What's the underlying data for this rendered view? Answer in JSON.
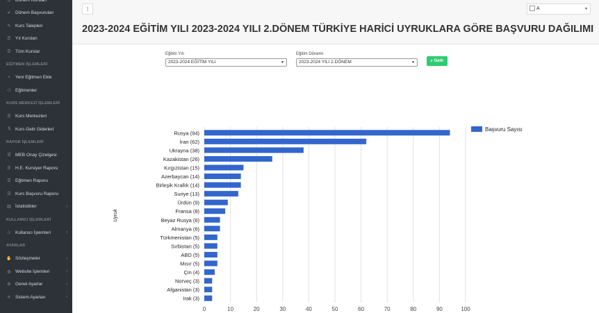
{
  "sidebar": {
    "items": [
      {
        "type": "item",
        "icon": "list-icon",
        "glyph": "☰",
        "label": "Dönem Kursları",
        "chevron": false
      },
      {
        "type": "item",
        "icon": "check-icon",
        "glyph": "✔",
        "label": "Dönem Başvuruları",
        "chevron": false
      },
      {
        "type": "item",
        "icon": "pencil-icon",
        "glyph": "✎",
        "label": "Kurs Talepleri",
        "chevron": false
      },
      {
        "type": "item",
        "icon": "list-icon",
        "glyph": "☰",
        "label": "Yıl Kursları",
        "chevron": false
      },
      {
        "type": "item",
        "icon": "list-icon",
        "glyph": "☰",
        "label": "Tüm Kurslar",
        "chevron": false
      },
      {
        "type": "header",
        "label": "EĞİTMEN İŞLEMLERİ"
      },
      {
        "type": "item",
        "icon": "user-plus-icon",
        "glyph": "+",
        "label": "Yeni Eğitmen Ekle",
        "chevron": false
      },
      {
        "type": "item",
        "icon": "users-icon",
        "glyph": "⚇",
        "label": "Eğitmenler",
        "chevron": false
      },
      {
        "type": "header",
        "label": "KURS MERKEZİ İŞLEMLERİ"
      },
      {
        "type": "item",
        "icon": "list-icon",
        "glyph": "☰",
        "label": "Kurs Merkezleri",
        "chevron": false
      },
      {
        "type": "item",
        "icon": "dollar-icon",
        "glyph": "$",
        "label": "Kurs Gelir Giderleri",
        "chevron": false
      },
      {
        "type": "header",
        "label": "RAPOR İŞLEMLERİ"
      },
      {
        "type": "item",
        "icon": "list-icon",
        "glyph": "☰",
        "label": "MEB Onay Çizelgesi",
        "chevron": false
      },
      {
        "type": "item",
        "icon": "list-icon",
        "glyph": "☰",
        "label": "H.E. Kursiyer Raporu",
        "chevron": false
      },
      {
        "type": "item",
        "icon": "list-icon",
        "glyph": "☰",
        "label": "Eğitmen Raporu",
        "chevron": false
      },
      {
        "type": "item",
        "icon": "list-icon",
        "glyph": "☰",
        "label": "Kurs Başvuru Raporu",
        "chevron": false
      },
      {
        "type": "item",
        "icon": "bar-chart-icon",
        "glyph": "▥",
        "label": "İstatistikler",
        "chevron": true
      },
      {
        "type": "header",
        "label": "KULLANICI İŞLEMLERİ"
      },
      {
        "type": "item",
        "icon": "users-icon",
        "glyph": "⚇",
        "label": "Kullanıcı İşlemleri",
        "chevron": true
      },
      {
        "type": "header",
        "label": "AYARLAR"
      },
      {
        "type": "item",
        "icon": "handshake-icon",
        "glyph": "✋",
        "label": "Sözleşmeler",
        "chevron": true
      },
      {
        "type": "item",
        "icon": "globe-icon",
        "glyph": "◍",
        "label": "Website İşlemleri",
        "chevron": true
      },
      {
        "type": "item",
        "icon": "gear-icon",
        "glyph": "⚙",
        "label": "Genel Ayarlar",
        "chevron": true
      },
      {
        "type": "item",
        "icon": "sliders-icon",
        "glyph": "⚟",
        "label": "Sistem Ayarları",
        "chevron": true
      }
    ]
  },
  "topbar": {
    "menu_glyph": "⁝",
    "user_alt": "A"
  },
  "page": {
    "title": "2023-2024 EĞİTİM YILI 2023-2024 YILI 2.DÖNEM TÜRKİYE HARİCİ UYRUKLARA GÖRE BAŞVURU DAĞILIMI"
  },
  "filters": {
    "year_label": "Eğitim Yılı",
    "year_value": "2023-2024 EĞİTİM YILI",
    "term_label": "Eğitim Dönemi",
    "term_value": "2023-2024 YILI 2.DÖNEM",
    "submit_label": "Getir"
  },
  "colors": {
    "bar": "#3366cc",
    "grid": "#e2e2e2",
    "text": "#222222"
  },
  "chart_data": {
    "type": "bar",
    "orientation": "horizontal",
    "title": "",
    "xlabel": "",
    "ylabel": "Uyruk",
    "xlim": [
      0,
      100
    ],
    "xticks": [
      0,
      10,
      20,
      30,
      40,
      50,
      60,
      70,
      80,
      90,
      100
    ],
    "legend": {
      "position": "right"
    },
    "categories": [
      "Rusya (94)",
      "İran (62)",
      "Ukrayna (38)",
      "Kazakistan (26)",
      "Kırgızistan (15)",
      "Azerbaycan (14)",
      "Birleşik Krallık (14)",
      "Suriye (13)",
      "Ürdün (9)",
      "Fransa (8)",
      "Beyaz Rusya (6)",
      "Almanya (6)",
      "Türkmenistan (5)",
      "Sırbistan (5)",
      "ABD (5)",
      "Mısır (5)",
      "Çin (4)",
      "Norveç (3)",
      "Afganistan (3)",
      "Irak (3)"
    ],
    "series": [
      {
        "name": "Başvuru Sayısı",
        "values": [
          94,
          62,
          38,
          26,
          15,
          14,
          14,
          13,
          9,
          8,
          6,
          6,
          5,
          5,
          5,
          5,
          4,
          3,
          3,
          3
        ]
      }
    ]
  }
}
